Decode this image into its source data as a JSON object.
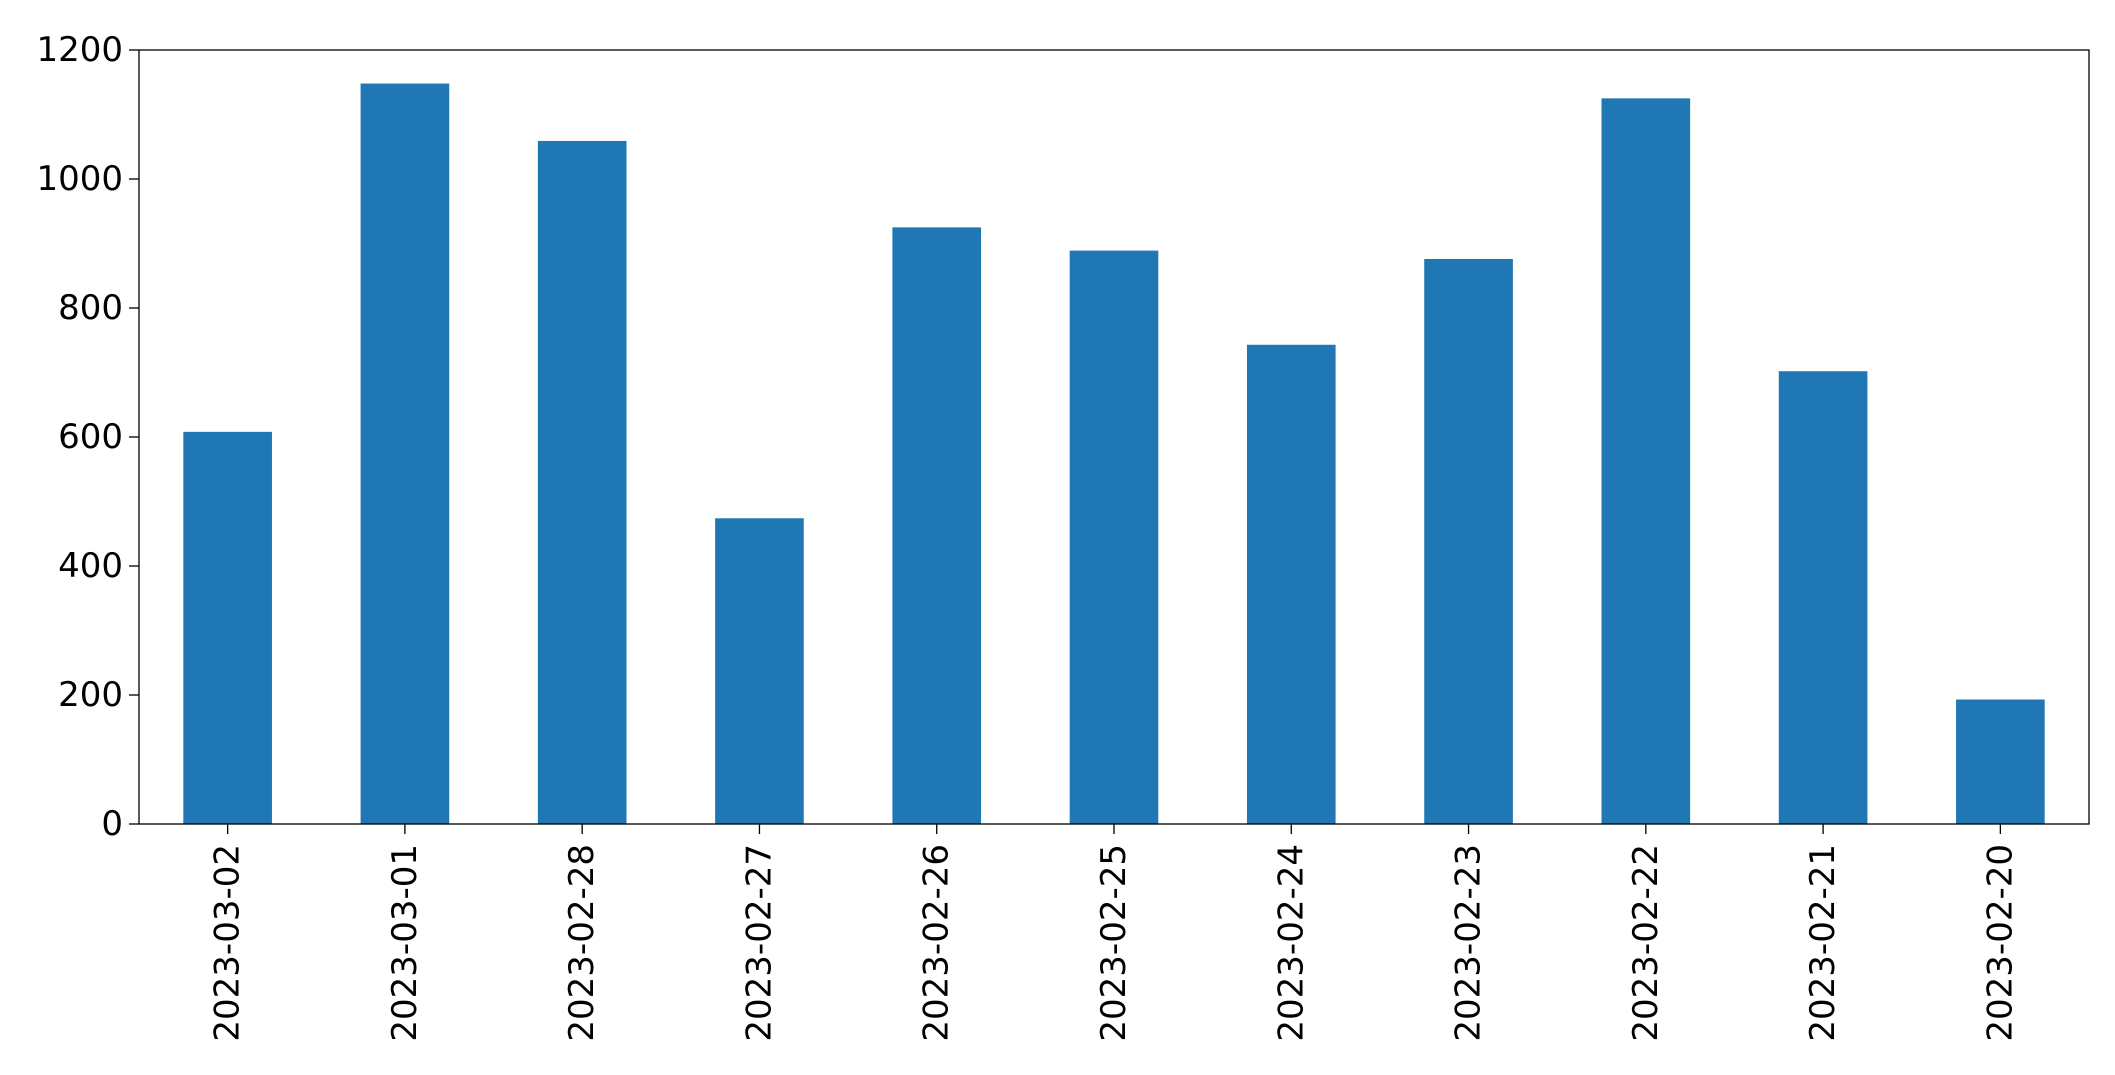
{
  "chart_data": {
    "type": "bar",
    "title": "",
    "xlabel": "",
    "ylabel": "",
    "categories": [
      "2023-03-02",
      "2023-03-01",
      "2023-02-28",
      "2023-02-27",
      "2023-02-26",
      "2023-02-25",
      "2023-02-24",
      "2023-02-23",
      "2023-02-22",
      "2023-02-21",
      "2023-02-20"
    ],
    "values": [
      608,
      1148,
      1059,
      474,
      925,
      889,
      743,
      876,
      1125,
      702,
      193
    ],
    "ylim": [
      0,
      1200
    ],
    "yticks": [
      0,
      200,
      400,
      600,
      800,
      1000,
      1200
    ],
    "grid": false,
    "legend": "none",
    "colors": {
      "bar": "#1f77b4",
      "axis": "#000000"
    }
  }
}
